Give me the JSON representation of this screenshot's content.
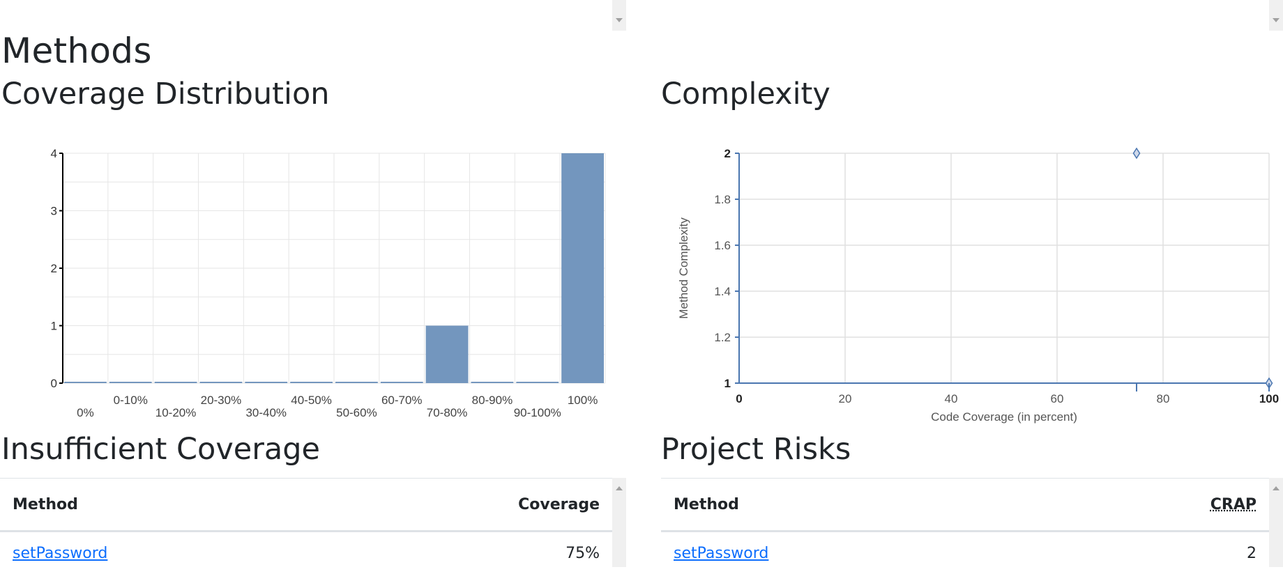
{
  "page": {
    "title": "Methods"
  },
  "coverage_distribution": {
    "heading": "Coverage Distribution",
    "chart_data": {
      "type": "bar",
      "categories": [
        "0%",
        "0-10%",
        "10-20%",
        "20-30%",
        "30-40%",
        "40-50%",
        "50-60%",
        "60-70%",
        "70-80%",
        "80-90%",
        "90-100%",
        "100%"
      ],
      "values": [
        0,
        0,
        0,
        0,
        0,
        0,
        0,
        0,
        1,
        0,
        0,
        4
      ],
      "ylim": [
        0,
        4
      ],
      "yticks": [
        "0",
        "1",
        "2",
        "3",
        "4"
      ],
      "grid": true,
      "bar_color": "#7396be"
    }
  },
  "complexity": {
    "heading": "Complexity",
    "chart_data": {
      "type": "scatter",
      "xlabel": "Code Coverage (in percent)",
      "ylabel": "Method Complexity",
      "xlim": [
        0,
        100
      ],
      "ylim": [
        1,
        2
      ],
      "xticks": [
        "0",
        "20",
        "40",
        "60",
        "80",
        "100"
      ],
      "yticks": [
        "1",
        "1.2",
        "1.4",
        "1.6",
        "1.8",
        "2"
      ],
      "points": [
        {
          "x": 75,
          "y": 2
        },
        {
          "x": 100,
          "y": 1
        }
      ],
      "grid": true,
      "marker_color": "#4a76b0"
    }
  },
  "insufficient_coverage": {
    "heading": "Insufficient Coverage",
    "columns": [
      "Method",
      "Coverage"
    ],
    "rows": [
      {
        "method": "setPassword",
        "value": "75%"
      }
    ]
  },
  "project_risks": {
    "heading": "Project Risks",
    "columns": [
      "Method",
      "CRAP"
    ],
    "rows": [
      {
        "method": "setPassword",
        "value": "2"
      }
    ]
  }
}
